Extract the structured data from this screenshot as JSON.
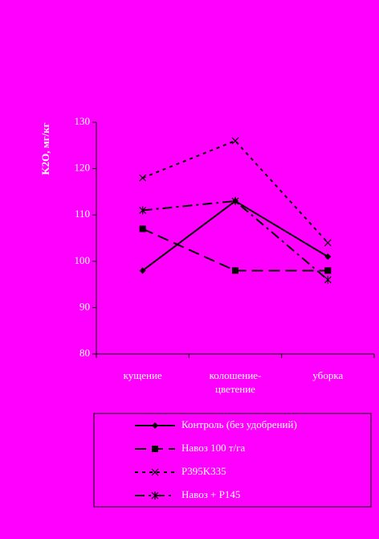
{
  "chart_data": {
    "type": "line",
    "y_label": "K2O, мг/кг",
    "categories": [
      "кущение",
      "колошение-цветение",
      "уборка"
    ],
    "series": [
      {
        "name": "Контроль (без удобрений)",
        "color": "#000000",
        "dash": "solid",
        "marker": "diamond",
        "values": [
          98,
          113,
          101
        ]
      },
      {
        "name": "Навоз 100 т/га",
        "color": "#000000",
        "dash": "long",
        "marker": "square",
        "values": [
          107,
          98,
          98
        ]
      },
      {
        "name": "P395K335",
        "color": "#000000",
        "dash": "short",
        "marker": "x",
        "values": [
          118,
          126,
          104
        ]
      },
      {
        "name": "Навоз + P145",
        "color": "#000000",
        "dash": "dashdot",
        "marker": "asterisk",
        "values": [
          111,
          113,
          96
        ]
      }
    ],
    "ylim": [
      80,
      130
    ],
    "yticks": [
      80,
      90,
      100,
      110,
      120,
      130
    ],
    "background": "#ff00ff"
  }
}
